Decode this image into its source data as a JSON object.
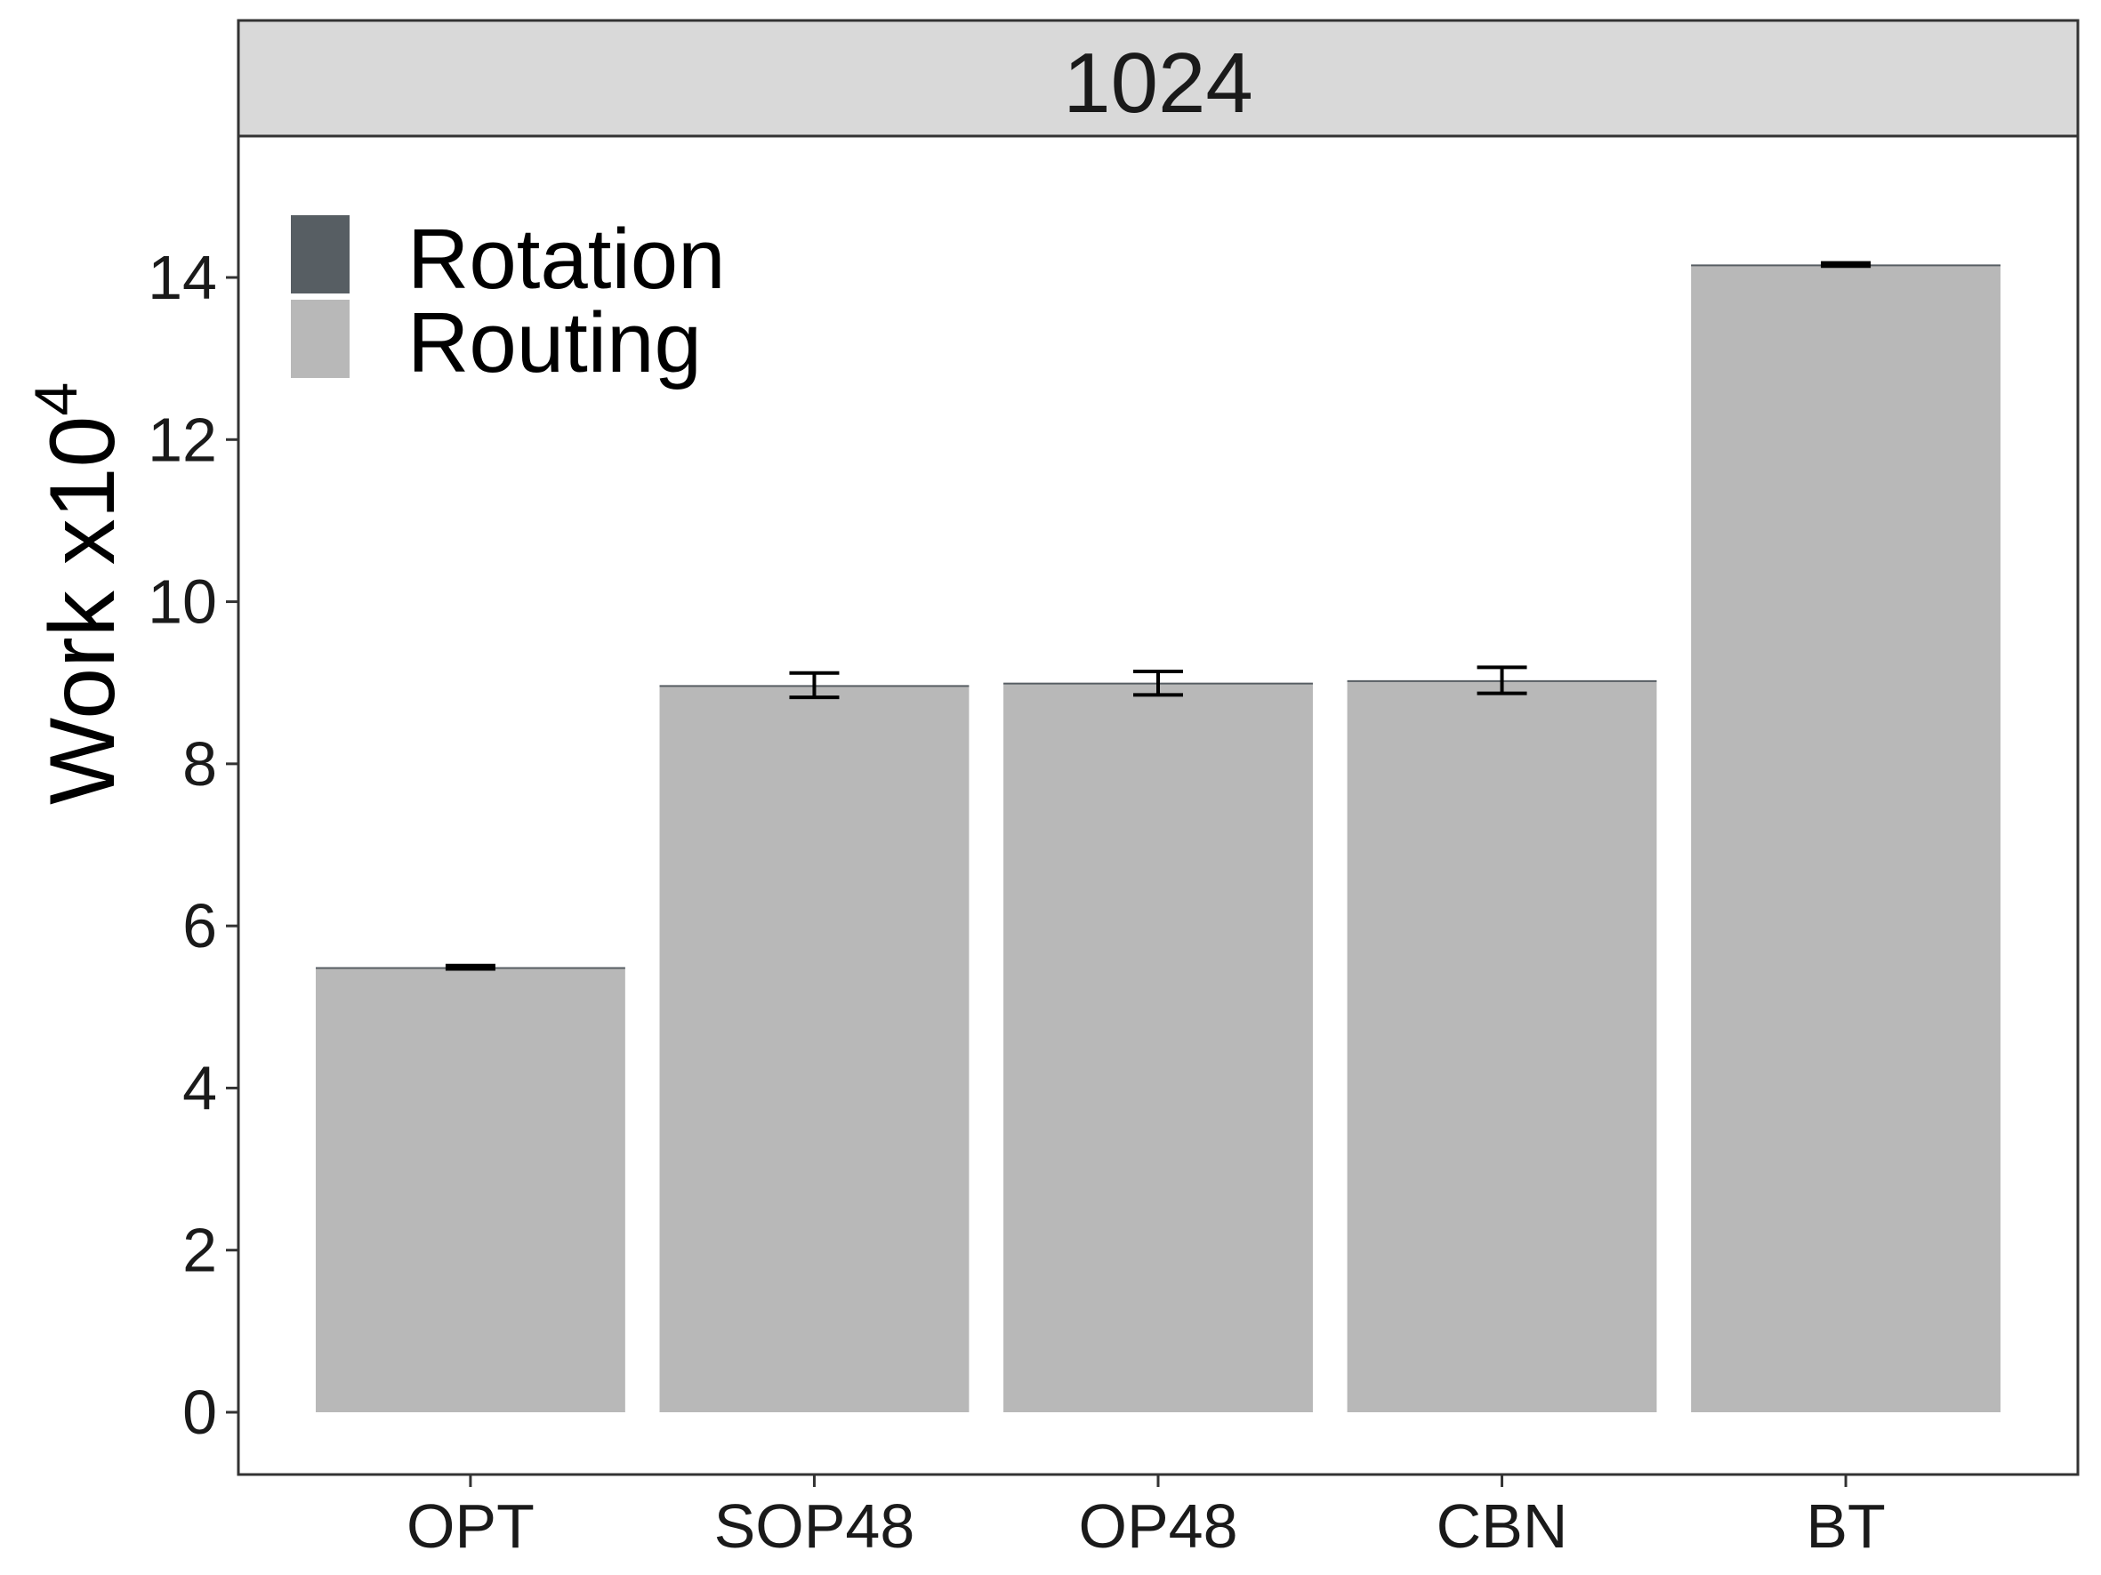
{
  "chart_data": {
    "type": "bar",
    "facet_label": "1024",
    "categories": [
      "OPT",
      "SOP48",
      "OP48",
      "CBN",
      "BT"
    ],
    "series": [
      {
        "name": "Rotation",
        "values": [
          0,
          0,
          0,
          0,
          0
        ]
      },
      {
        "name": "Routing",
        "values": [
          5.48,
          8.96,
          8.99,
          9.02,
          14.15
        ]
      }
    ],
    "error_bars": [
      {
        "low": 5.47,
        "high": 5.51
      },
      {
        "low": 8.82,
        "high": 9.12
      },
      {
        "low": 8.85,
        "high": 9.14
      },
      {
        "low": 8.87,
        "high": 9.19
      },
      {
        "low": 14.14,
        "high": 14.18
      }
    ],
    "ylabel": "Work x10",
    "ylabel_superscript": "4",
    "xlabel": "",
    "ylim": [
      -0.75,
      15.7
    ],
    "yticks": [
      0,
      2,
      4,
      6,
      8,
      10,
      12,
      14
    ],
    "legend": {
      "placement": "top-left",
      "entries": [
        "Rotation",
        "Routing"
      ]
    },
    "colors": {
      "Rotation": "#575e63",
      "Routing": "#b8b8b8",
      "strip": "#d9d9d9",
      "frame": "#333333"
    },
    "grid": false
  }
}
